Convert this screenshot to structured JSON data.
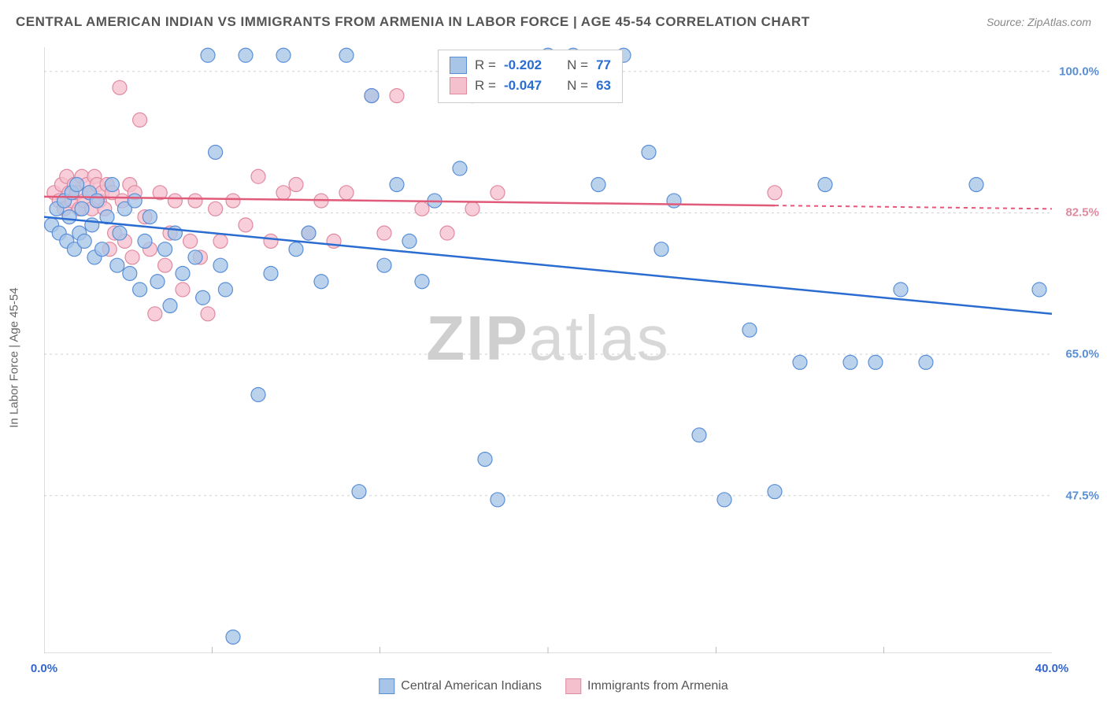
{
  "header": {
    "title": "CENTRAL AMERICAN INDIAN VS IMMIGRANTS FROM ARMENIA IN LABOR FORCE | AGE 45-54 CORRELATION CHART",
    "source": "Source: ZipAtlas.com"
  },
  "axes": {
    "y_label": "In Labor Force | Age 45-54",
    "x_min": 0.0,
    "x_max": 40.0,
    "y_min": 28.0,
    "y_max": 103.0,
    "y_ticks": [
      {
        "value": 100.0,
        "label": "100.0%",
        "color": "#5a8fd6"
      },
      {
        "value": 82.5,
        "label": "82.5%",
        "color": "#e08aa0"
      },
      {
        "value": 65.0,
        "label": "65.0%",
        "color": "#5a8fd6"
      },
      {
        "value": 47.5,
        "label": "47.5%",
        "color": "#5a8fd6"
      }
    ],
    "x_ticks": [
      {
        "value": 0.0,
        "label": "0.0%"
      },
      {
        "value": 40.0,
        "label": "40.0%"
      }
    ],
    "x_minor_ticks": [
      6.67,
      13.33,
      20.0,
      26.67,
      33.33
    ],
    "grid_color": "#d0d0d0",
    "axis_color": "#bbbbbb"
  },
  "watermark": {
    "zip": "ZIP",
    "atlas": "atlas"
  },
  "series": [
    {
      "id": "central-american-indians",
      "label": "Central American Indians",
      "color_fill": "#a8c5e8",
      "color_stroke": "#5a8fd6",
      "line_color": "#2b6cd1",
      "marker_radius": 9,
      "marker_opacity": 0.78,
      "R": "-0.202",
      "N": "77",
      "trend": {
        "x1": 0.0,
        "y1": 82.0,
        "x2": 40.0,
        "y2": 70.0,
        "solid_until_x": 40.0
      },
      "points": [
        [
          0.3,
          81
        ],
        [
          0.5,
          83
        ],
        [
          0.6,
          80
        ],
        [
          0.8,
          84
        ],
        [
          0.9,
          79
        ],
        [
          1.0,
          82
        ],
        [
          1.1,
          85
        ],
        [
          1.2,
          78
        ],
        [
          1.3,
          86
        ],
        [
          1.4,
          80
        ],
        [
          1.5,
          83
        ],
        [
          1.6,
          79
        ],
        [
          1.8,
          85
        ],
        [
          1.9,
          81
        ],
        [
          2.0,
          77
        ],
        [
          2.1,
          84
        ],
        [
          2.3,
          78
        ],
        [
          2.5,
          82
        ],
        [
          2.7,
          86
        ],
        [
          2.9,
          76
        ],
        [
          3.0,
          80
        ],
        [
          3.2,
          83
        ],
        [
          3.4,
          75
        ],
        [
          3.6,
          84
        ],
        [
          3.8,
          73
        ],
        [
          4.0,
          79
        ],
        [
          4.2,
          82
        ],
        [
          4.5,
          74
        ],
        [
          4.8,
          78
        ],
        [
          5.0,
          71
        ],
        [
          5.2,
          80
        ],
        [
          5.5,
          75
        ],
        [
          6.0,
          77
        ],
        [
          6.3,
          72
        ],
        [
          6.5,
          102
        ],
        [
          6.8,
          90
        ],
        [
          7.0,
          76
        ],
        [
          7.2,
          73
        ],
        [
          7.5,
          30
        ],
        [
          8.0,
          102
        ],
        [
          8.5,
          60
        ],
        [
          9.0,
          75
        ],
        [
          9.5,
          102
        ],
        [
          10.0,
          78
        ],
        [
          10.5,
          80
        ],
        [
          11.0,
          74
        ],
        [
          12.0,
          102
        ],
        [
          12.5,
          48
        ],
        [
          13.0,
          97
        ],
        [
          13.5,
          76
        ],
        [
          14.0,
          86
        ],
        [
          14.5,
          79
        ],
        [
          15.0,
          74
        ],
        [
          15.5,
          84
        ],
        [
          16.5,
          88
        ],
        [
          17.0,
          97
        ],
        [
          17.5,
          52
        ],
        [
          18.0,
          47
        ],
        [
          20.0,
          102
        ],
        [
          21.0,
          102
        ],
        [
          22.0,
          86
        ],
        [
          23.0,
          102
        ],
        [
          24.0,
          90
        ],
        [
          24.5,
          78
        ],
        [
          25.0,
          84
        ],
        [
          26.0,
          55
        ],
        [
          27.0,
          47
        ],
        [
          28.0,
          68
        ],
        [
          29.0,
          48
        ],
        [
          30.0,
          64
        ],
        [
          31.0,
          86
        ],
        [
          32.0,
          64
        ],
        [
          33.0,
          64
        ],
        [
          34.0,
          73
        ],
        [
          35.0,
          64
        ],
        [
          37.0,
          86
        ],
        [
          39.5,
          73
        ]
      ]
    },
    {
      "id": "immigrants-armenia",
      "label": "Immigrants from Armenia",
      "color_fill": "#f5c0ce",
      "color_stroke": "#e08aa0",
      "line_color": "#e05a7a",
      "marker_radius": 9,
      "marker_opacity": 0.78,
      "R": "-0.047",
      "N": "63",
      "trend": {
        "x1": 0.0,
        "y1": 84.5,
        "x2": 40.0,
        "y2": 83.0,
        "solid_until_x": 29.0
      },
      "points": [
        [
          0.4,
          85
        ],
        [
          0.6,
          84
        ],
        [
          0.7,
          86
        ],
        [
          0.8,
          83
        ],
        [
          0.9,
          87
        ],
        [
          1.0,
          85
        ],
        [
          1.1,
          84
        ],
        [
          1.2,
          86
        ],
        [
          1.3,
          85
        ],
        [
          1.4,
          83
        ],
        [
          1.5,
          87
        ],
        [
          1.6,
          84
        ],
        [
          1.7,
          86
        ],
        [
          1.8,
          85
        ],
        [
          1.9,
          83
        ],
        [
          2.0,
          87
        ],
        [
          2.1,
          86
        ],
        [
          2.2,
          84
        ],
        [
          2.3,
          85
        ],
        [
          2.4,
          83
        ],
        [
          2.5,
          86
        ],
        [
          2.6,
          78
        ],
        [
          2.7,
          85
        ],
        [
          2.8,
          80
        ],
        [
          3.0,
          98
        ],
        [
          3.1,
          84
        ],
        [
          3.2,
          79
        ],
        [
          3.4,
          86
        ],
        [
          3.5,
          77
        ],
        [
          3.6,
          85
        ],
        [
          3.8,
          94
        ],
        [
          4.0,
          82
        ],
        [
          4.2,
          78
        ],
        [
          4.4,
          70
        ],
        [
          4.6,
          85
        ],
        [
          4.8,
          76
        ],
        [
          5.0,
          80
        ],
        [
          5.2,
          84
        ],
        [
          5.5,
          73
        ],
        [
          5.8,
          79
        ],
        [
          6.0,
          84
        ],
        [
          6.2,
          77
        ],
        [
          6.5,
          70
        ],
        [
          6.8,
          83
        ],
        [
          7.0,
          79
        ],
        [
          7.5,
          84
        ],
        [
          8.0,
          81
        ],
        [
          8.5,
          87
        ],
        [
          9.0,
          79
        ],
        [
          9.5,
          85
        ],
        [
          10.0,
          86
        ],
        [
          10.5,
          80
        ],
        [
          11.0,
          84
        ],
        [
          11.5,
          79
        ],
        [
          12.0,
          85
        ],
        [
          13.0,
          97
        ],
        [
          13.5,
          80
        ],
        [
          14.0,
          97
        ],
        [
          15.0,
          83
        ],
        [
          16.0,
          80
        ],
        [
          17.0,
          83
        ],
        [
          18.0,
          85
        ],
        [
          29.0,
          85
        ]
      ]
    }
  ],
  "stats_box": {
    "r_label": "R =",
    "n_label": "N ="
  },
  "legend": {
    "items": [
      {
        "series": 0
      },
      {
        "series": 1
      }
    ]
  }
}
